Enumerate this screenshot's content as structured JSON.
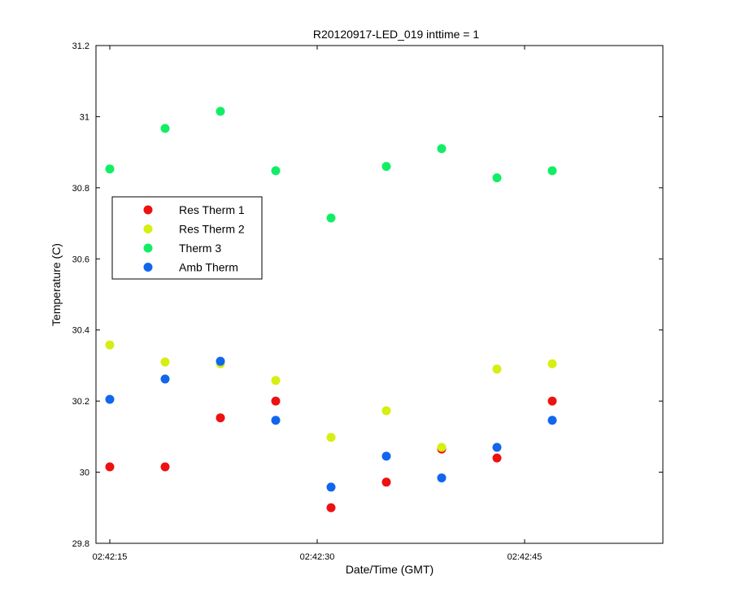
{
  "chart_data": {
    "type": "scatter",
    "title": "R20120917-LED_019 inttime = 1",
    "xlabel": "Date/Time (GMT)",
    "ylabel": "Temperature (C)",
    "x_ticks": [
      "02:42:15",
      "02:42:30",
      "02:42:45"
    ],
    "y_ticks": [
      "29.8",
      "30",
      "30.2",
      "30.4",
      "30.6",
      "30.8",
      "31",
      "31.2"
    ],
    "xlim": [
      "02:42:14",
      "02:42:55"
    ],
    "ylim": [
      29.8,
      31.2
    ],
    "grid": false,
    "legend_position": "upper-left",
    "x": [
      "02:42:15",
      "02:42:19",
      "02:42:23",
      "02:42:27",
      "02:42:31",
      "02:42:35",
      "02:42:39",
      "02:42:43",
      "02:42:47"
    ],
    "series": [
      {
        "name": "Res Therm 1",
        "color": "#ee1111",
        "values": [
          30.015,
          30.015,
          30.153,
          30.2,
          29.9,
          29.972,
          30.065,
          30.04,
          30.2
        ]
      },
      {
        "name": "Res Therm 2",
        "color": "#d6ee11",
        "values": [
          30.358,
          30.31,
          30.305,
          30.258,
          30.098,
          30.173,
          30.07,
          30.29,
          30.305
        ]
      },
      {
        "name": "Therm 3",
        "color": "#11ee66",
        "values": [
          30.853,
          30.967,
          31.015,
          30.848,
          30.715,
          30.86,
          30.91,
          30.828,
          30.848
        ]
      },
      {
        "name": "Amb Therm",
        "color": "#1166ee",
        "values": [
          30.205,
          30.262,
          30.312,
          30.146,
          29.958,
          30.045,
          29.984,
          30.07,
          30.146
        ]
      }
    ]
  }
}
